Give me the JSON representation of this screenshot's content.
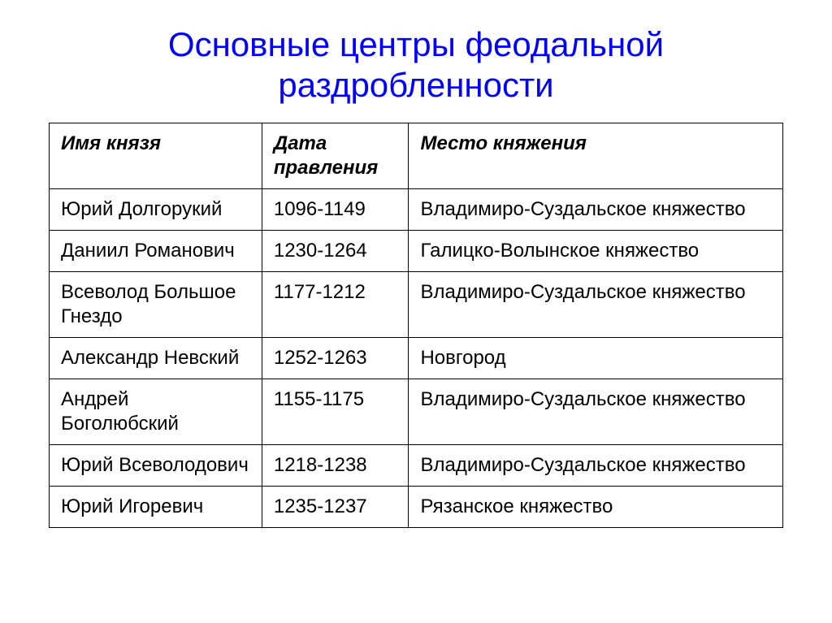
{
  "title": "Основные центры феодальной раздробленности",
  "table": {
    "columns": [
      "Имя князя",
      "Дата правления",
      "Место княжения"
    ],
    "rows": [
      [
        "Юрий Долгорукий",
        "1096-1149",
        "Владимиро-Суздальское княжество"
      ],
      [
        "Даниил Романович",
        "1230-1264",
        "Галицко-Волынское княжество"
      ],
      [
        "Всеволод Большое Гнездо",
        "1177-1212",
        "Владимиро-Суздальское княжество"
      ],
      [
        "Александр Невский",
        "1252-1263",
        "Новгород"
      ],
      [
        "Андрей Боголюбский",
        "1155-1175",
        "Владимиро-Суздальское княжество"
      ],
      [
        "Юрий Всеволодович",
        "1218-1238",
        "Владимиро-Суздальское княжество"
      ],
      [
        "Юрий Игоревич",
        "1235-1237",
        "Рязанское княжество"
      ]
    ]
  },
  "styling": {
    "title_color": "#0000ff",
    "title_fontsize": 42,
    "border_color": "#000000",
    "background_color": "#ffffff",
    "cell_fontsize": 24,
    "header_font_weight": "bold",
    "header_font_style": "italic",
    "column_widths": [
      "29%",
      "20%",
      "51%"
    ]
  }
}
